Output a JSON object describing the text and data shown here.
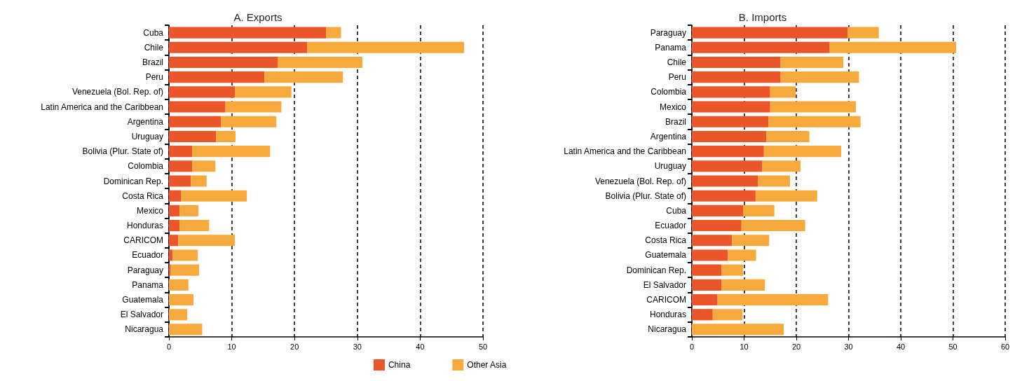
{
  "chart_data": [
    {
      "type": "bar",
      "title": "A. Exports",
      "orientation": "horizontal",
      "stacked": true,
      "categories": [
        "Cuba",
        "Chile",
        "Brazil",
        "Peru",
        "Venezuela (Bol. Rep. of)",
        "Latin America and the Caribbean",
        "Argentina",
        "Uruguay",
        "Bolivia (Plur. State of)",
        "Colombia",
        "Dominican Rep.",
        "Costa Rica",
        "Mexico",
        "Honduras",
        "CARICOM",
        "Ecuador",
        "Paraguay",
        "Panama",
        "Guatemala",
        "El Salvador",
        "Nicaragua"
      ],
      "series": [
        {
          "name": "China",
          "color": "#ea5529",
          "values": [
            25,
            22,
            17.3,
            15.2,
            10.5,
            9,
            8.3,
            7.5,
            3.7,
            3.7,
            3.5,
            1.9,
            1.7,
            1.7,
            1.5,
            0.6,
            0.3,
            0,
            0,
            0,
            0
          ]
        },
        {
          "name": "Other Asia",
          "color": "#f6aa3d",
          "values": [
            2.4,
            25,
            13.5,
            12.5,
            9,
            8.9,
            8.8,
            3.1,
            12.4,
            3.7,
            2.5,
            10.5,
            3,
            4.7,
            9,
            4,
            4.5,
            3.1,
            3.9,
            2.9,
            5.3
          ]
        }
      ],
      "xlim": [
        0,
        50
      ],
      "xticks": [
        0,
        10,
        20,
        30,
        40,
        50
      ],
      "grid": "x",
      "legend": "bottom right"
    },
    {
      "type": "bar",
      "title": "B. Imports",
      "orientation": "horizontal",
      "stacked": true,
      "categories": [
        "Paraguay",
        "Panama",
        "Chile",
        "Peru",
        "Colombia",
        "Mexico",
        "Brazil",
        "Argentina",
        "Latin America and the Caribbean",
        "Uruguay",
        "Venezuela (Bol. Rep. of)",
        "Bolivia (Plur. State of)",
        "Cuba",
        "Ecuador",
        "Costa Rica",
        "Guatemala",
        "Dominican Rep.",
        "El Salvador",
        "CARICOM",
        "Honduras",
        "Nicaragua"
      ],
      "series": [
        {
          "color": "#ea5529",
          "values": [
            29.8,
            26.4,
            17,
            17,
            15,
            15,
            14.7,
            14.3,
            13.8,
            13.5,
            12.7,
            12.2,
            9.8,
            9.5,
            7.7,
            6.9,
            5.7,
            5.7,
            4.9,
            4,
            0
          ]
        },
        {
          "color": "#f6aa3d",
          "values": [
            6,
            24.2,
            12,
            15,
            4.9,
            16.4,
            17.6,
            8.2,
            14.8,
            7.3,
            6.1,
            11.8,
            6,
            12.2,
            7.1,
            5.4,
            4.1,
            8.3,
            21.2,
            5.7,
            17.6
          ]
        }
      ],
      "xlim": [
        0,
        60
      ],
      "xticks": [
        0,
        10,
        20,
        30,
        40,
        50,
        60
      ],
      "grid": "x",
      "legend": false
    }
  ]
}
